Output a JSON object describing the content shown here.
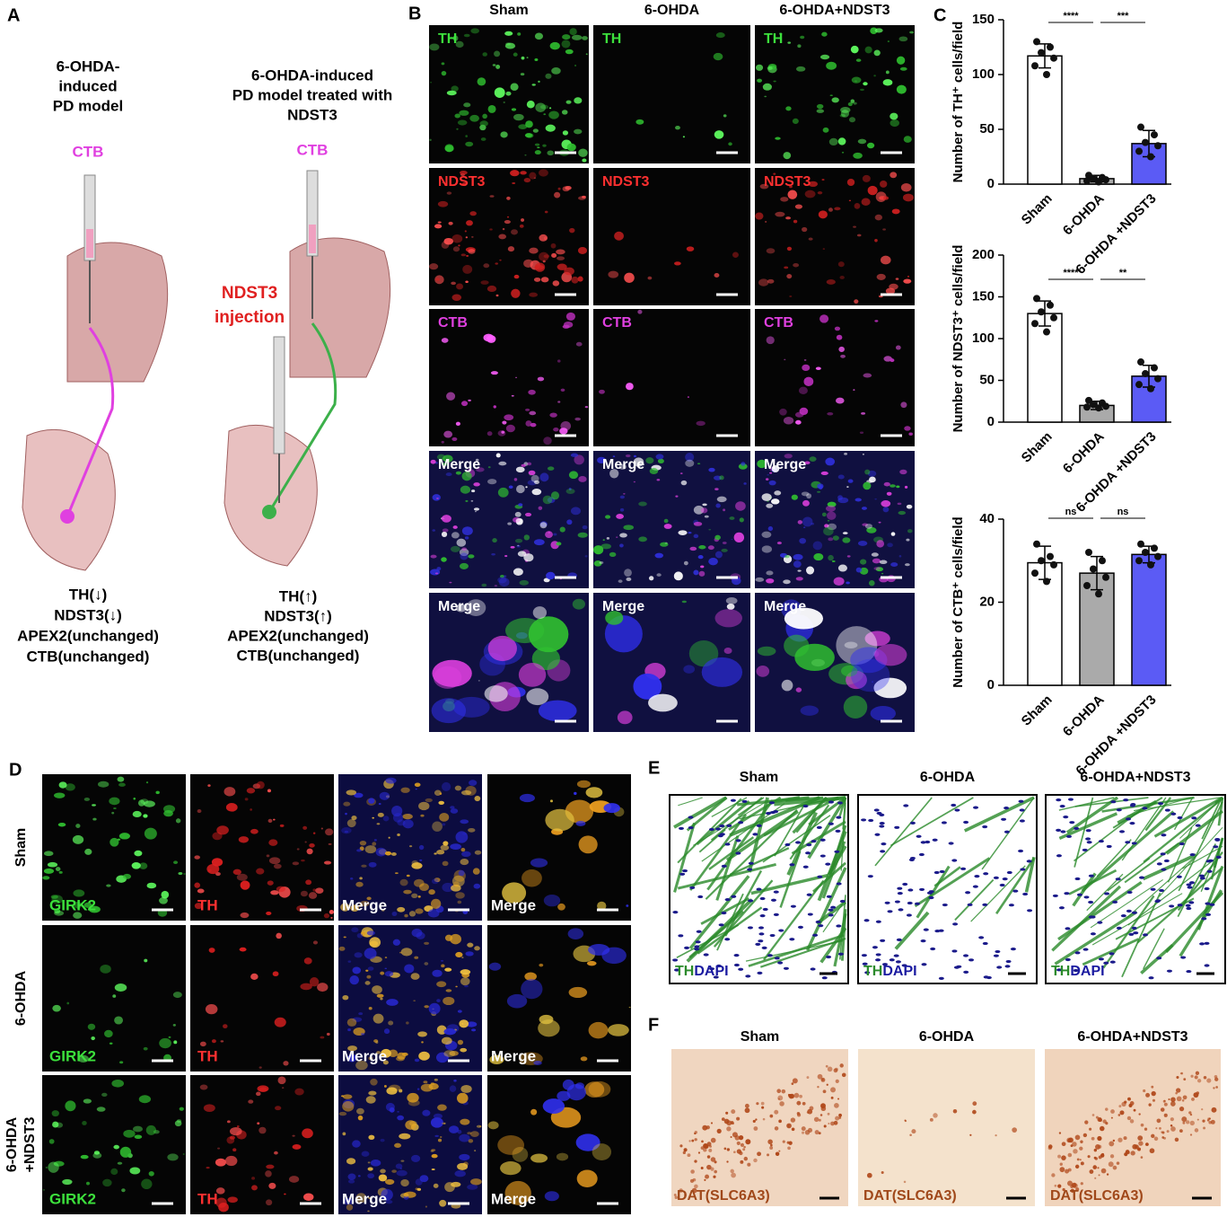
{
  "panel_a": {
    "letter": "A",
    "left": {
      "title_lines": [
        "6-OHDA-",
        "induced",
        "PD model"
      ],
      "tracer": "CTB",
      "results": [
        "TH(↓)",
        "NDST3(↓)",
        "APEX2(unchanged)",
        "CTB(unchanged)"
      ]
    },
    "right": {
      "title_lines": [
        "6-OHDA-induced",
        "PD model treated with",
        "NDST3"
      ],
      "tracer": "CTB",
      "injection_lines": [
        "NDST3",
        "injection"
      ],
      "results": [
        "TH(↑)",
        "NDST3(↑)",
        "APEX2(unchanged)",
        "CTB(unchanged)"
      ]
    }
  },
  "panel_b": {
    "letter": "B",
    "columns": [
      "Sham",
      "6-OHDA",
      "6-OHDA+NDST3"
    ],
    "rows": [
      "TH",
      "NDST3",
      "CTB",
      "Merge",
      "Merge"
    ]
  },
  "panel_c": {
    "letter": "C"
  },
  "chart_data": [
    {
      "type": "bar",
      "y_label": "Number of TH⁺ cells/field",
      "categories": [
        "Sham",
        "6-OHDA",
        "6-OHDA +NDST3"
      ],
      "values": [
        117,
        5,
        37
      ],
      "errors": [
        11,
        3,
        12
      ],
      "points": [
        [
          130,
          125,
          120,
          115,
          108,
          100
        ],
        [
          8,
          6,
          5,
          4,
          3,
          2
        ],
        [
          52,
          45,
          38,
          35,
          30,
          25
        ]
      ],
      "colors": [
        "#ffffff",
        "#aaaaaa",
        "#5b5bf5"
      ],
      "ylim": [
        0,
        150
      ],
      "yticks": [
        0,
        50,
        100,
        150
      ],
      "significance": [
        "****",
        "***"
      ]
    },
    {
      "type": "bar",
      "y_label": "Number of NDST3⁺ cells/field",
      "categories": [
        "Sham",
        "6-OHDA",
        "6-OHDA +NDST3"
      ],
      "values": [
        130,
        20,
        55
      ],
      "errors": [
        15,
        5,
        13
      ],
      "points": [
        [
          148,
          140,
          132,
          125,
          118,
          108
        ],
        [
          26,
          23,
          21,
          19,
          18,
          17
        ],
        [
          72,
          65,
          58,
          52,
          45,
          40
        ]
      ],
      "colors": [
        "#ffffff",
        "#aaaaaa",
        "#5b5bf5"
      ],
      "ylim": [
        0,
        200
      ],
      "yticks": [
        0,
        50,
        100,
        150,
        200
      ],
      "significance": [
        "****",
        "**"
      ]
    },
    {
      "type": "bar",
      "y_label": "Number of CTB⁺ cells/field",
      "categories": [
        "Sham",
        "6-OHDA",
        "6-OHDA +NDST3"
      ],
      "values": [
        29.5,
        27,
        31.5
      ],
      "errors": [
        4,
        4,
        2
      ],
      "points": [
        [
          34,
          31,
          30,
          29,
          27,
          25
        ],
        [
          32,
          30,
          28,
          26,
          24,
          22
        ],
        [
          34,
          33,
          32,
          31,
          30,
          29
        ]
      ],
      "colors": [
        "#ffffff",
        "#aaaaaa",
        "#5b5bf5"
      ],
      "ylim": [
        0,
        40
      ],
      "yticks": [
        0,
        20,
        40
      ],
      "significance": [
        "ns",
        "ns"
      ]
    }
  ],
  "panel_d": {
    "letter": "D",
    "rows": [
      [
        "Sham"
      ],
      [
        "6-OHDA"
      ],
      [
        "6-OHDA",
        "+NDST3"
      ]
    ],
    "channels": [
      "GIRK2",
      "TH",
      "Merge",
      "Merge"
    ]
  },
  "panel_e": {
    "letter": "E",
    "columns": [
      "Sham",
      "6-OHDA",
      "6-OHDA+NDST3"
    ],
    "labels": [
      "TH",
      "DAPI"
    ]
  },
  "panel_f": {
    "letter": "F",
    "columns": [
      "Sham",
      "6-OHDA",
      "6-OHDA+NDST3"
    ],
    "label": "DAT(SLC6A3)"
  }
}
